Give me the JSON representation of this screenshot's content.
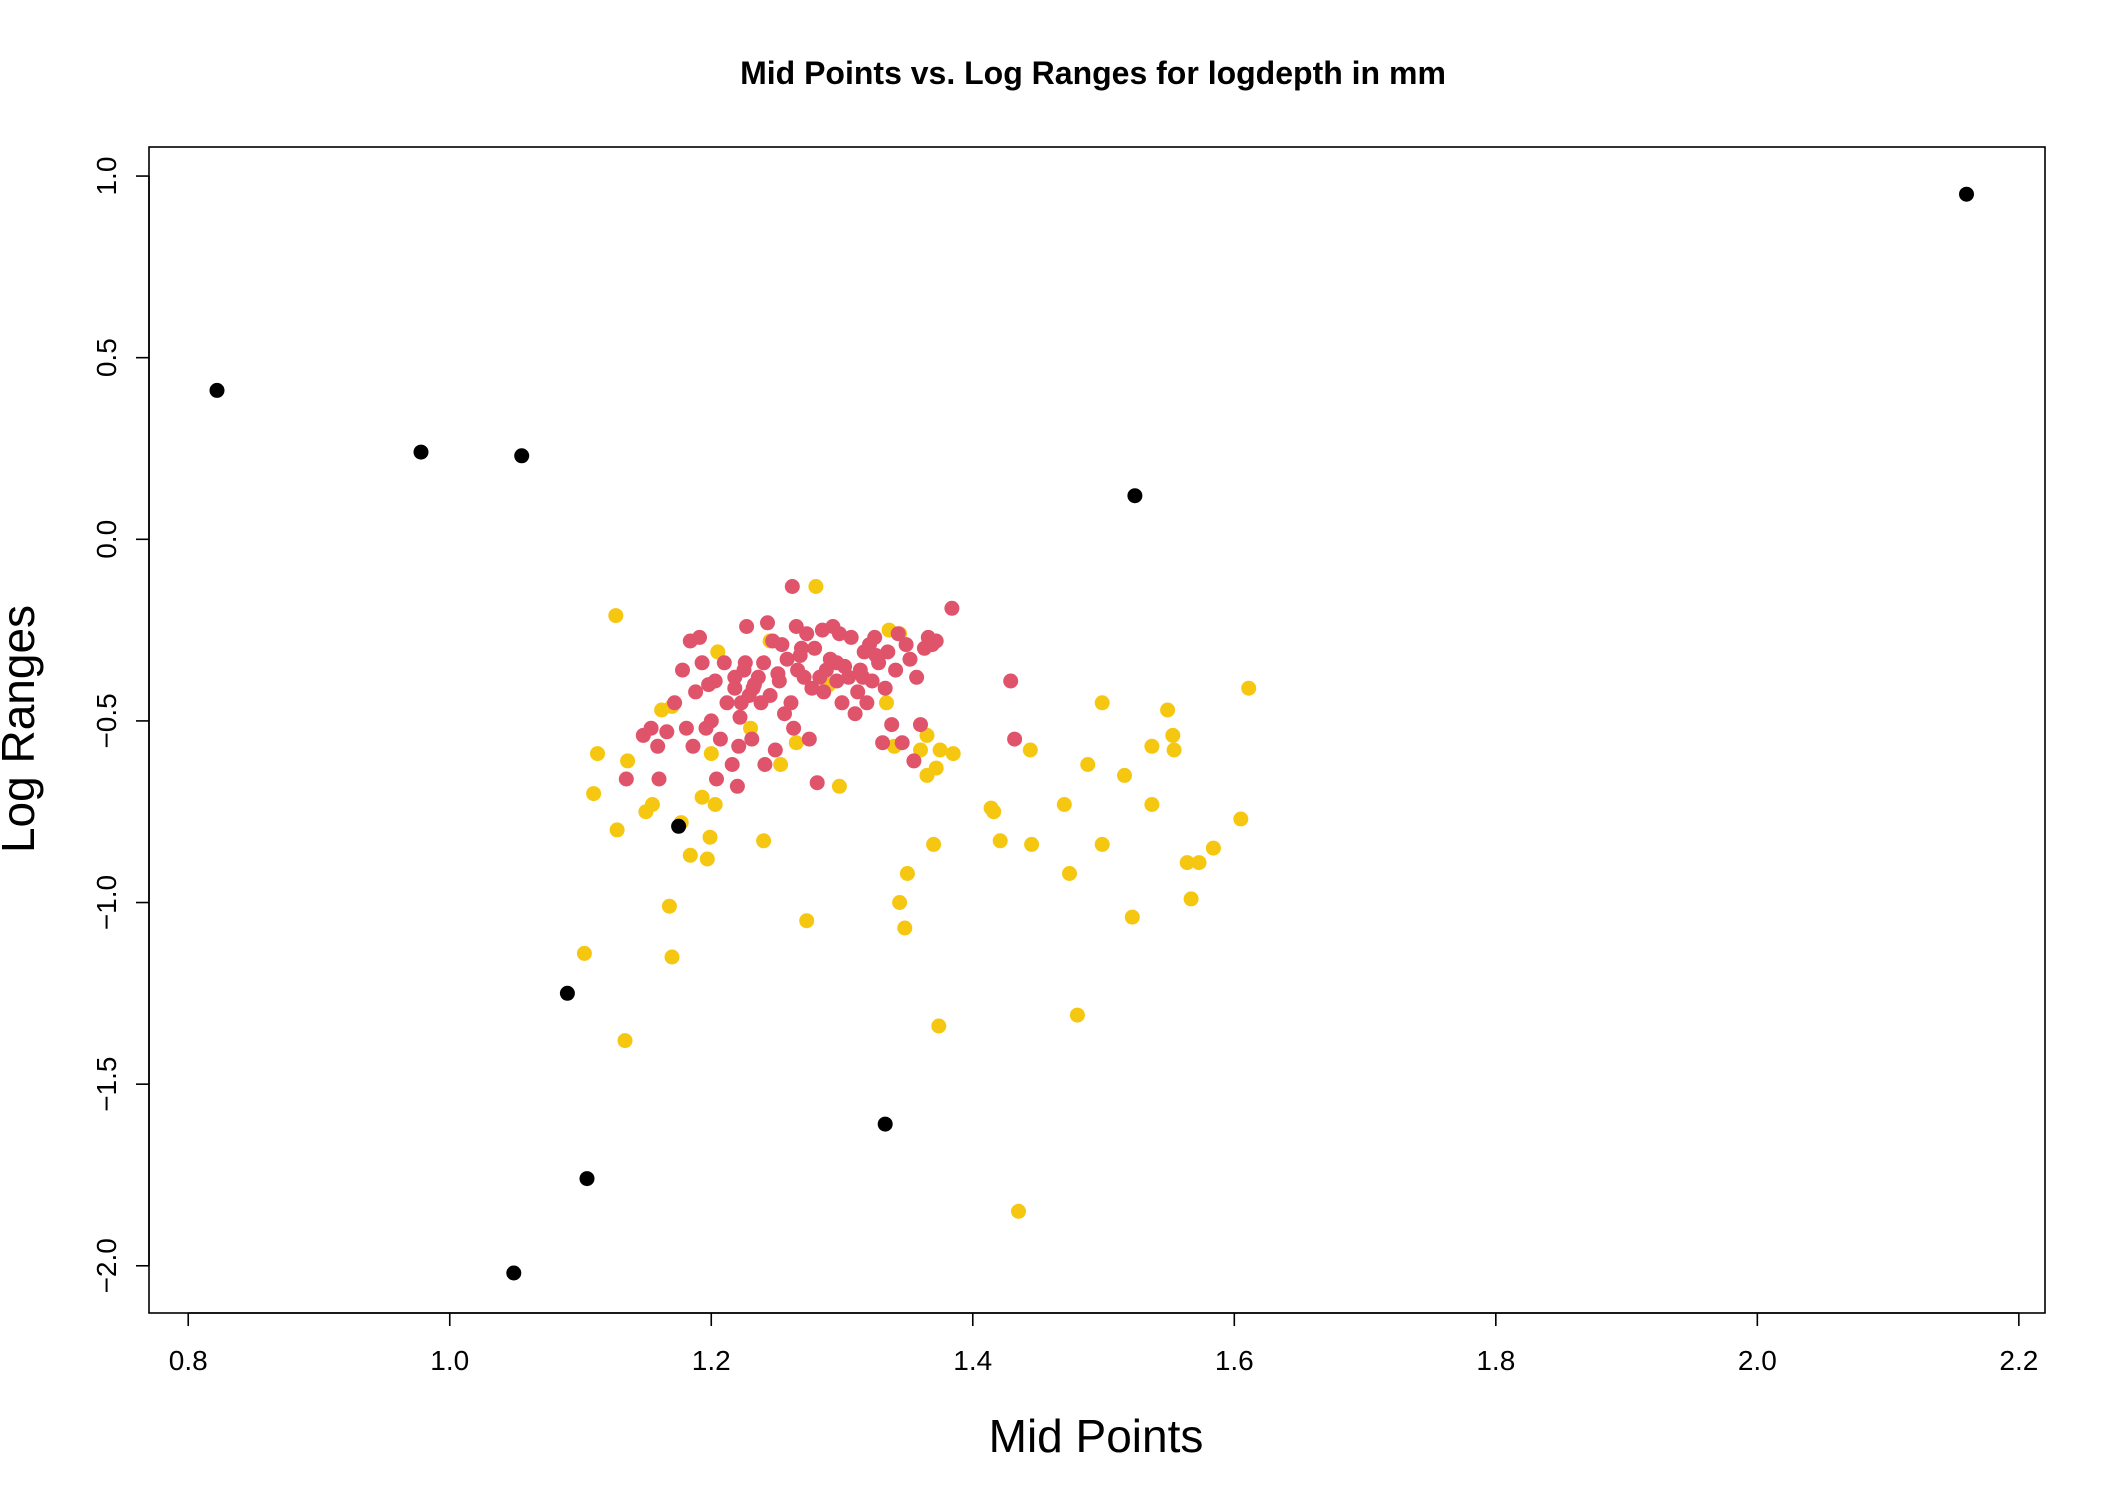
{
  "chart_data": {
    "type": "scatter",
    "title": "Mid Points vs. Log Ranges for logdepth in mm",
    "xlabel": "Mid Points",
    "ylabel": "Log Ranges",
    "xlim": [
      0.77,
      2.22
    ],
    "ylim": [
      -2.13,
      1.08
    ],
    "x_ticks": [
      0.8,
      1.0,
      1.2,
      1.4,
      1.6,
      1.8,
      2.0,
      2.2
    ],
    "x_tick_labels": [
      "0.8",
      "1.0",
      "1.2",
      "1.4",
      "1.6",
      "1.8",
      "2.0",
      "2.2"
    ],
    "y_ticks": [
      -2.0,
      -1.5,
      -1.0,
      -0.5,
      0.0,
      0.5,
      1.0
    ],
    "y_tick_labels": [
      "-2.0",
      "-1.5",
      "-1.0",
      "-0.5",
      "0.0",
      "0.5",
      "1.0"
    ],
    "grid": false,
    "legend": "none",
    "series": [
      {
        "color": "#F5C710",
        "points": [
          [
            1.127,
            -0.21
          ],
          [
            1.28,
            -0.13
          ],
          [
            1.113,
            -0.59
          ],
          [
            1.136,
            -0.61
          ],
          [
            1.11,
            -0.7
          ],
          [
            1.128,
            -0.8
          ],
          [
            1.15,
            -0.75
          ],
          [
            1.155,
            -0.73
          ],
          [
            1.162,
            -0.47
          ],
          [
            1.17,
            -0.46
          ],
          [
            1.177,
            -0.78
          ],
          [
            1.184,
            -0.87
          ],
          [
            1.193,
            -0.71
          ],
          [
            1.199,
            -0.82
          ],
          [
            1.197,
            -0.88
          ],
          [
            1.203,
            -0.73
          ],
          [
            1.2,
            -0.59
          ],
          [
            1.168,
            -1.01
          ],
          [
            1.17,
            -1.15
          ],
          [
            1.103,
            -1.14
          ],
          [
            1.134,
            -1.38
          ],
          [
            1.24,
            -0.83
          ],
          [
            1.253,
            -0.62
          ],
          [
            1.265,
            -0.56
          ],
          [
            1.273,
            -1.05
          ],
          [
            1.298,
            -0.68
          ],
          [
            1.334,
            -0.45
          ],
          [
            1.34,
            -0.57
          ],
          [
            1.344,
            -1.0
          ],
          [
            1.348,
            -1.07
          ],
          [
            1.35,
            -0.92
          ],
          [
            1.36,
            -0.58
          ],
          [
            1.365,
            -0.54
          ],
          [
            1.365,
            -0.65
          ],
          [
            1.372,
            -0.63
          ],
          [
            1.37,
            -0.84
          ],
          [
            1.375,
            -0.58
          ],
          [
            1.374,
            -1.34
          ],
          [
            1.385,
            -0.59
          ],
          [
            1.336,
            -0.25
          ],
          [
            1.344,
            -0.26
          ],
          [
            1.414,
            -0.74
          ],
          [
            1.416,
            -0.75
          ],
          [
            1.421,
            -0.83
          ],
          [
            1.444,
            -0.58
          ],
          [
            1.445,
            -0.84
          ],
          [
            1.47,
            -0.73
          ],
          [
            1.474,
            -0.92
          ],
          [
            1.48,
            -1.31
          ],
          [
            1.488,
            -0.62
          ],
          [
            1.499,
            -0.45
          ],
          [
            1.499,
            -0.84
          ],
          [
            1.516,
            -0.65
          ],
          [
            1.522,
            -1.04
          ],
          [
            1.537,
            -0.57
          ],
          [
            1.537,
            -0.73
          ],
          [
            1.549,
            -0.47
          ],
          [
            1.553,
            -0.54
          ],
          [
            1.554,
            -0.58
          ],
          [
            1.564,
            -0.89
          ],
          [
            1.567,
            -0.99
          ],
          [
            1.573,
            -0.89
          ],
          [
            1.584,
            -0.85
          ],
          [
            1.605,
            -0.77
          ],
          [
            1.611,
            -0.41
          ],
          [
            1.435,
            -1.85
          ],
          [
            1.245,
            -0.28
          ],
          [
            1.29,
            -0.4
          ],
          [
            1.23,
            -0.52
          ],
          [
            1.205,
            -0.31
          ]
        ]
      },
      {
        "color": "#DF536B",
        "points": [
          [
            1.262,
            -0.13
          ],
          [
            1.384,
            -0.19
          ],
          [
            1.429,
            -0.39
          ],
          [
            1.432,
            -0.55
          ],
          [
            1.135,
            -0.66
          ],
          [
            1.148,
            -0.54
          ],
          [
            1.154,
            -0.52
          ],
          [
            1.159,
            -0.57
          ],
          [
            1.16,
            -0.66
          ],
          [
            1.166,
            -0.53
          ],
          [
            1.172,
            -0.45
          ],
          [
            1.178,
            -0.36
          ],
          [
            1.181,
            -0.52
          ],
          [
            1.184,
            -0.28
          ],
          [
            1.186,
            -0.57
          ],
          [
            1.188,
            -0.42
          ],
          [
            1.191,
            -0.27
          ],
          [
            1.193,
            -0.34
          ],
          [
            1.196,
            -0.52
          ],
          [
            1.198,
            -0.4
          ],
          [
            1.2,
            -0.5
          ],
          [
            1.203,
            -0.39
          ],
          [
            1.204,
            -0.66
          ],
          [
            1.207,
            -0.55
          ],
          [
            1.21,
            -0.34
          ],
          [
            1.212,
            -0.45
          ],
          [
            1.216,
            -0.62
          ],
          [
            1.218,
            -0.38
          ],
          [
            1.22,
            -0.68
          ],
          [
            1.221,
            -0.57
          ],
          [
            1.223,
            -0.45
          ],
          [
            1.225,
            -0.36
          ],
          [
            1.227,
            -0.24
          ],
          [
            1.229,
            -0.43
          ],
          [
            1.231,
            -0.55
          ],
          [
            1.233,
            -0.4
          ],
          [
            1.236,
            -0.38
          ],
          [
            1.238,
            -0.45
          ],
          [
            1.241,
            -0.62
          ],
          [
            1.243,
            -0.23
          ],
          [
            1.245,
            -0.43
          ],
          [
            1.247,
            -0.28
          ],
          [
            1.249,
            -0.58
          ],
          [
            1.251,
            -0.37
          ],
          [
            1.254,
            -0.29
          ],
          [
            1.256,
            -0.48
          ],
          [
            1.258,
            -0.33
          ],
          [
            1.261,
            -0.45
          ],
          [
            1.263,
            -0.52
          ],
          [
            1.265,
            -0.24
          ],
          [
            1.266,
            -0.36
          ],
          [
            1.269,
            -0.3
          ],
          [
            1.271,
            -0.38
          ],
          [
            1.273,
            -0.26
          ],
          [
            1.275,
            -0.55
          ],
          [
            1.277,
            -0.41
          ],
          [
            1.279,
            -0.3
          ],
          [
            1.281,
            -0.67
          ],
          [
            1.283,
            -0.38
          ],
          [
            1.285,
            -0.25
          ],
          [
            1.288,
            -0.36
          ],
          [
            1.291,
            -0.33
          ],
          [
            1.293,
            -0.24
          ],
          [
            1.296,
            -0.39
          ],
          [
            1.298,
            -0.26
          ],
          [
            1.3,
            -0.45
          ],
          [
            1.302,
            -0.35
          ],
          [
            1.305,
            -0.38
          ],
          [
            1.307,
            -0.27
          ],
          [
            1.31,
            -0.48
          ],
          [
            1.312,
            -0.42
          ],
          [
            1.314,
            -0.36
          ],
          [
            1.317,
            -0.31
          ],
          [
            1.319,
            -0.45
          ],
          [
            1.321,
            -0.29
          ],
          [
            1.323,
            -0.39
          ],
          [
            1.325,
            -0.27
          ],
          [
            1.328,
            -0.34
          ],
          [
            1.331,
            -0.56
          ],
          [
            1.333,
            -0.41
          ],
          [
            1.335,
            -0.31
          ],
          [
            1.338,
            -0.51
          ],
          [
            1.341,
            -0.36
          ],
          [
            1.343,
            -0.26
          ],
          [
            1.346,
            -0.56
          ],
          [
            1.349,
            -0.29
          ],
          [
            1.352,
            -0.33
          ],
          [
            1.355,
            -0.61
          ],
          [
            1.357,
            -0.38
          ],
          [
            1.36,
            -0.51
          ],
          [
            1.363,
            -0.3
          ],
          [
            1.366,
            -0.27
          ],
          [
            1.369,
            -0.29
          ],
          [
            1.372,
            -0.28
          ],
          [
            1.218,
            -0.41
          ],
          [
            1.222,
            -0.49
          ],
          [
            1.226,
            -0.34
          ],
          [
            1.232,
            -0.41
          ],
          [
            1.24,
            -0.34
          ],
          [
            1.252,
            -0.39
          ],
          [
            1.268,
            -0.32
          ],
          [
            1.286,
            -0.42
          ],
          [
            1.296,
            -0.34
          ],
          [
            1.316,
            -0.38
          ],
          [
            1.326,
            -0.32
          ]
        ]
      },
      {
        "color": "#000000",
        "points": [
          [
            0.822,
            0.41
          ],
          [
            0.978,
            0.24
          ],
          [
            1.055,
            0.23
          ],
          [
            1.524,
            0.12
          ],
          [
            2.16,
            0.95
          ],
          [
            1.09,
            -1.25
          ],
          [
            1.175,
            -0.79
          ],
          [
            1.105,
            -1.76
          ],
          [
            1.049,
            -2.02
          ],
          [
            1.333,
            -1.61
          ]
        ]
      }
    ]
  }
}
